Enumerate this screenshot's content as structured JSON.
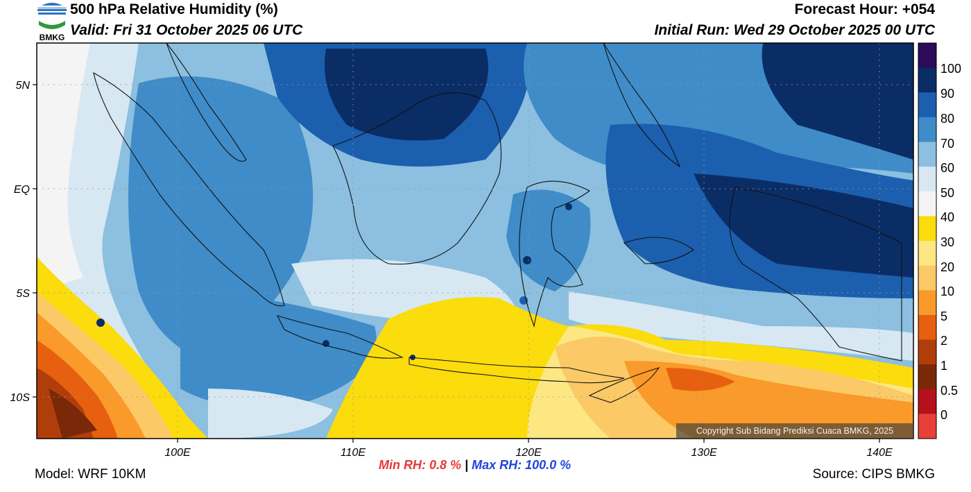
{
  "header": {
    "title": "500 hPa Relative Humidity (%)",
    "valid": "Valid: Fri 31 October 2025 06 UTC",
    "forecast_hour": "Forecast Hour: +054",
    "initial_run": "Initial Run: Wed 29 October 2025 00 UTC"
  },
  "logo": {
    "text": "BMKG"
  },
  "map": {
    "lon_labels": [
      "100E",
      "110E",
      "120E",
      "130E",
      "140E"
    ],
    "lat_labels": [
      "5N",
      "EQ",
      "5S",
      "10S"
    ],
    "extent": {
      "lon_min": 92,
      "lon_max": 142,
      "lat_min": -12,
      "lat_max": 7
    }
  },
  "colorbar": {
    "labels": [
      "100",
      "90",
      "80",
      "70",
      "60",
      "50",
      "40",
      "30",
      "20",
      "10",
      "5",
      "2",
      "1",
      "0.5",
      "0"
    ],
    "colors": [
      "#2d0a5a",
      "#0b2d66",
      "#1c5fae",
      "#3f8cc8",
      "#8cbfe0",
      "#d7e8f3",
      "#f4f4f4",
      "#fbdc0c",
      "#fce783",
      "#fcc967",
      "#f99a2a",
      "#e6600f",
      "#b03e0b",
      "#7b2808",
      "#b5111c",
      "#e84038"
    ]
  },
  "stats": {
    "min_rh": "Min RH:   0.8 %",
    "separator": "|",
    "max_rh": "Max RH: 100.0 %"
  },
  "footer": {
    "model": "Model: WRF 10KM",
    "source": "Source: CIPS BMKG",
    "copyright": "Copyright Sub Bidang Prediksi Cuaca BMKG, 2025"
  }
}
